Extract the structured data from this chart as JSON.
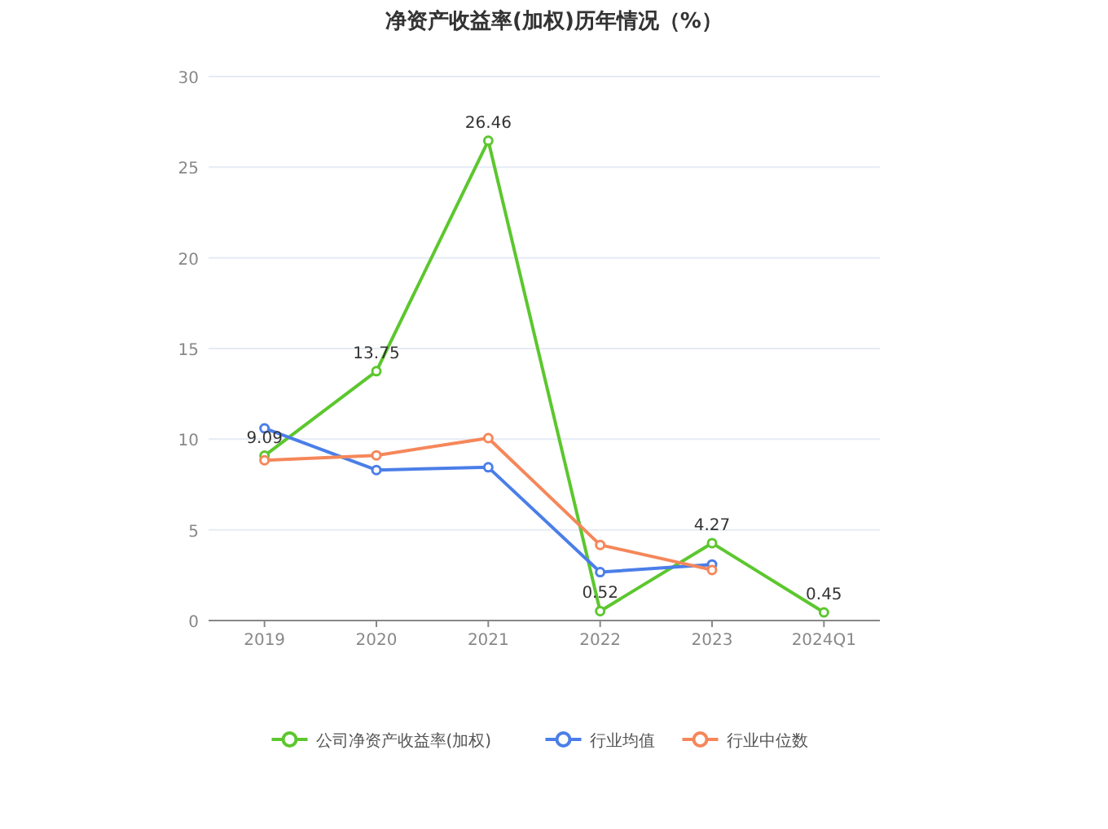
{
  "chart_data": {
    "type": "line",
    "title": "净资产收益率(加权)历年情况（%）",
    "categories": [
      "2019",
      "2020",
      "2021",
      "2022",
      "2023",
      "2024Q1"
    ],
    "series": [
      {
        "name": "公司净资产收益率(加权)",
        "color": "#5cc72e",
        "values": [
          9.09,
          13.75,
          26.46,
          0.52,
          4.27,
          0.45
        ],
        "value_labels": [
          "9.09",
          "13.75",
          "26.46",
          "0.52",
          "4.27",
          "0.45"
        ]
      },
      {
        "name": "行业均值",
        "color": "#4b7ee8",
        "values": [
          10.6,
          8.3,
          8.45,
          2.67,
          3.09,
          null
        ]
      },
      {
        "name": "行业中位数",
        "color": "#f5875a",
        "values": [
          8.84,
          9.11,
          10.06,
          4.17,
          2.79,
          null
        ]
      }
    ],
    "ylim": [
      0,
      30
    ],
    "yticks": [
      0,
      5,
      10,
      15,
      20,
      25,
      30
    ],
    "grid": "y",
    "legend": "bottom",
    "marker": "circle",
    "line_style": "solid"
  }
}
